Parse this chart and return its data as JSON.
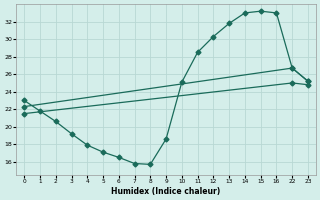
{
  "xlabel": "Humidex (Indice chaleur)",
  "bg_color": "#d4eeea",
  "grid_color": "#b8d8d4",
  "line_color": "#1a6b5a",
  "xtick_labels": [
    "0",
    "1",
    "2",
    "3",
    "4",
    "5",
    "6",
    "7",
    "8",
    "9",
    "10",
    "11",
    "12",
    "13",
    "14",
    "15",
    "16",
    "22",
    "23"
  ],
  "yticks": [
    16,
    18,
    20,
    22,
    24,
    26,
    28,
    30,
    32
  ],
  "ylim": [
    14.5,
    34.0
  ],
  "line1_xi": [
    0,
    1,
    2,
    3,
    4,
    5,
    6,
    7,
    8,
    9,
    10,
    11,
    12,
    13,
    14,
    15,
    16,
    17,
    18
  ],
  "line1_y": [
    23.0,
    21.8,
    20.6,
    19.2,
    17.9,
    17.1,
    16.5,
    15.8,
    15.7,
    18.6,
    25.1,
    28.5,
    30.3,
    31.8,
    33.0,
    33.2,
    33.0,
    26.7,
    25.2
  ],
  "line2_xi": [
    0,
    17,
    18
  ],
  "line2_y": [
    22.3,
    26.7,
    25.2
  ],
  "line3_xi": [
    0,
    17,
    18
  ],
  "line3_y": [
    21.5,
    25.0,
    24.8
  ]
}
